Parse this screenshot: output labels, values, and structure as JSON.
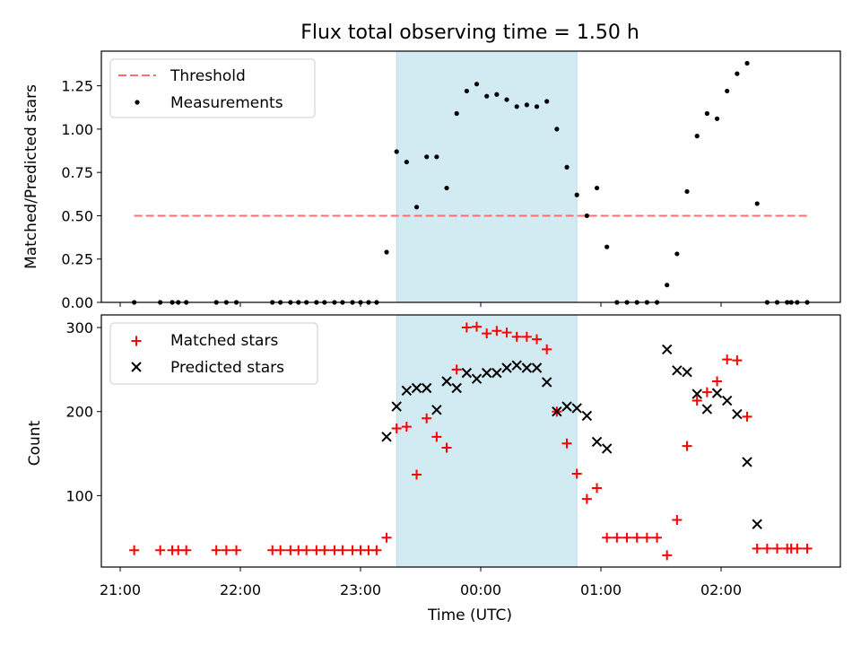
{
  "chart_data": {
    "type": "scatter",
    "title": "Flux total observing time = 1.50 h",
    "xlabel": "Time (UTC)",
    "x_ticks": [
      "21:00",
      "22:00",
      "23:00",
      "00:00",
      "01:00",
      "02:00"
    ],
    "highlight_span": {
      "start": "23:18",
      "end": "00:48",
      "color": "#add8e6"
    },
    "top_panel": {
      "ylabel": "Matched/Predicted stars",
      "ylim": [
        0,
        1.45
      ],
      "y_ticks": [
        "0.00",
        "0.25",
        "0.50",
        "0.75",
        "1.00",
        "1.25"
      ],
      "legend": {
        "placement": "upper-left",
        "entries": [
          "Threshold",
          "Measurements"
        ]
      },
      "threshold": {
        "name": "Threshold",
        "value": 0.5,
        "x_start": "21:07",
        "x_end": "02:43",
        "color": "#ff6f6f"
      },
      "measurements": {
        "name": "Measurements",
        "color": "#000000",
        "points": [
          [
            "21:07",
            0.0
          ],
          [
            "21:20",
            0.0
          ],
          [
            "21:26",
            0.0
          ],
          [
            "21:29",
            0.0
          ],
          [
            "21:33",
            0.0
          ],
          [
            "21:48",
            0.0
          ],
          [
            "21:53",
            0.0
          ],
          [
            "21:58",
            0.0
          ],
          [
            "22:16",
            0.0
          ],
          [
            "22:20",
            0.0
          ],
          [
            "22:25",
            0.0
          ],
          [
            "22:29",
            0.0
          ],
          [
            "22:33",
            0.0
          ],
          [
            "22:38",
            0.0
          ],
          [
            "22:42",
            0.0
          ],
          [
            "22:47",
            0.0
          ],
          [
            "22:51",
            0.0
          ],
          [
            "22:56",
            0.0
          ],
          [
            "23:00",
            0.0
          ],
          [
            "23:04",
            0.0
          ],
          [
            "23:08",
            0.0
          ],
          [
            "23:13",
            0.29
          ],
          [
            "23:18",
            0.87
          ],
          [
            "23:23",
            0.81
          ],
          [
            "23:28",
            0.55
          ],
          [
            "23:33",
            0.84
          ],
          [
            "23:38",
            0.84
          ],
          [
            "23:43",
            0.66
          ],
          [
            "23:48",
            1.09
          ],
          [
            "23:53",
            1.22
          ],
          [
            "23:58",
            1.26
          ],
          [
            "00:03",
            1.19
          ],
          [
            "00:08",
            1.2
          ],
          [
            "00:13",
            1.17
          ],
          [
            "00:18",
            1.13
          ],
          [
            "00:23",
            1.14
          ],
          [
            "00:28",
            1.13
          ],
          [
            "00:33",
            1.16
          ],
          [
            "00:38",
            1.0
          ],
          [
            "00:43",
            0.78
          ],
          [
            "00:48",
            0.62
          ],
          [
            "00:53",
            0.5
          ],
          [
            "00:58",
            0.66
          ],
          [
            "01:03",
            0.32
          ],
          [
            "01:08",
            0.0
          ],
          [
            "01:13",
            0.0
          ],
          [
            "01:18",
            0.0
          ],
          [
            "01:23",
            0.0
          ],
          [
            "01:28",
            0.0
          ],
          [
            "01:33",
            0.1
          ],
          [
            "01:38",
            0.28
          ],
          [
            "01:43",
            0.64
          ],
          [
            "01:48",
            0.96
          ],
          [
            "01:53",
            1.09
          ],
          [
            "01:58",
            1.06
          ],
          [
            "02:03",
            1.22
          ],
          [
            "02:08",
            1.32
          ],
          [
            "02:13",
            1.38
          ],
          [
            "02:18",
            0.57
          ],
          [
            "02:23",
            0.0
          ],
          [
            "02:28",
            0.0
          ],
          [
            "02:33",
            0.0
          ],
          [
            "02:35",
            0.0
          ],
          [
            "02:38",
            0.0
          ],
          [
            "02:43",
            0.0
          ]
        ]
      }
    },
    "bottom_panel": {
      "ylabel": "Count",
      "ylim": [
        15,
        315
      ],
      "y_ticks": [
        "100",
        "200",
        "300"
      ],
      "legend": {
        "placement": "upper-left",
        "entries": [
          "Matched stars",
          "Predicted stars"
        ]
      },
      "matched": {
        "name": "Matched stars",
        "color": "#ff0000",
        "points": [
          [
            "21:07",
            35
          ],
          [
            "21:20",
            35
          ],
          [
            "21:26",
            35
          ],
          [
            "21:29",
            35
          ],
          [
            "21:33",
            35
          ],
          [
            "21:48",
            35
          ],
          [
            "21:53",
            35
          ],
          [
            "21:58",
            35
          ],
          [
            "22:16",
            35
          ],
          [
            "22:20",
            35
          ],
          [
            "22:25",
            35
          ],
          [
            "22:29",
            35
          ],
          [
            "22:33",
            35
          ],
          [
            "22:38",
            35
          ],
          [
            "22:42",
            35
          ],
          [
            "22:47",
            35
          ],
          [
            "22:51",
            35
          ],
          [
            "22:56",
            35
          ],
          [
            "23:00",
            35
          ],
          [
            "23:04",
            35
          ],
          [
            "23:08",
            35
          ],
          [
            "23:13",
            50
          ],
          [
            "23:18",
            180
          ],
          [
            "23:23",
            182
          ],
          [
            "23:28",
            125
          ],
          [
            "23:33",
            192
          ],
          [
            "23:38",
            170
          ],
          [
            "23:43",
            157
          ],
          [
            "23:48",
            250
          ],
          [
            "23:53",
            300
          ],
          [
            "23:58",
            301
          ],
          [
            "00:03",
            293
          ],
          [
            "00:08",
            296
          ],
          [
            "00:13",
            294
          ],
          [
            "00:18",
            289
          ],
          [
            "00:23",
            289
          ],
          [
            "00:28",
            286
          ],
          [
            "00:33",
            274
          ],
          [
            "00:38",
            200
          ],
          [
            "00:43",
            162
          ],
          [
            "00:48",
            126
          ],
          [
            "00:53",
            96
          ],
          [
            "00:58",
            109
          ],
          [
            "01:03",
            50
          ],
          [
            "01:08",
            50
          ],
          [
            "01:13",
            50
          ],
          [
            "01:18",
            50
          ],
          [
            "01:23",
            50
          ],
          [
            "01:28",
            50
          ],
          [
            "01:33",
            29
          ],
          [
            "01:38",
            71
          ],
          [
            "01:43",
            159
          ],
          [
            "01:48",
            213
          ],
          [
            "01:53",
            223
          ],
          [
            "01:58",
            236
          ],
          [
            "02:03",
            262
          ],
          [
            "02:08",
            261
          ],
          [
            "02:13",
            194
          ],
          [
            "02:18",
            37
          ],
          [
            "02:23",
            37
          ],
          [
            "02:28",
            37
          ],
          [
            "02:33",
            37
          ],
          [
            "02:35",
            37
          ],
          [
            "02:38",
            37
          ],
          [
            "02:43",
            37
          ]
        ]
      },
      "predicted": {
        "name": "Predicted stars",
        "color": "#000000",
        "points": [
          [
            "23:13",
            170
          ],
          [
            "23:18",
            206
          ],
          [
            "23:23",
            225
          ],
          [
            "23:28",
            228
          ],
          [
            "23:33",
            228
          ],
          [
            "23:38",
            202
          ],
          [
            "23:43",
            236
          ],
          [
            "23:48",
            228
          ],
          [
            "23:53",
            246
          ],
          [
            "23:58",
            239
          ],
          [
            "00:03",
            246
          ],
          [
            "00:08",
            246
          ],
          [
            "00:13",
            252
          ],
          [
            "00:18",
            255
          ],
          [
            "00:23",
            252
          ],
          [
            "00:28",
            252
          ],
          [
            "00:33",
            235
          ],
          [
            "00:38",
            200
          ],
          [
            "00:43",
            206
          ],
          [
            "00:48",
            204
          ],
          [
            "00:53",
            195
          ],
          [
            "00:58",
            164
          ],
          [
            "01:03",
            156
          ],
          [
            "01:33",
            274
          ],
          [
            "01:38",
            249
          ],
          [
            "01:43",
            247
          ],
          [
            "01:48",
            221
          ],
          [
            "01:53",
            203
          ],
          [
            "01:58",
            222
          ],
          [
            "02:03",
            213
          ],
          [
            "02:08",
            197
          ],
          [
            "02:13",
            140
          ],
          [
            "02:18",
            66
          ]
        ]
      }
    }
  }
}
